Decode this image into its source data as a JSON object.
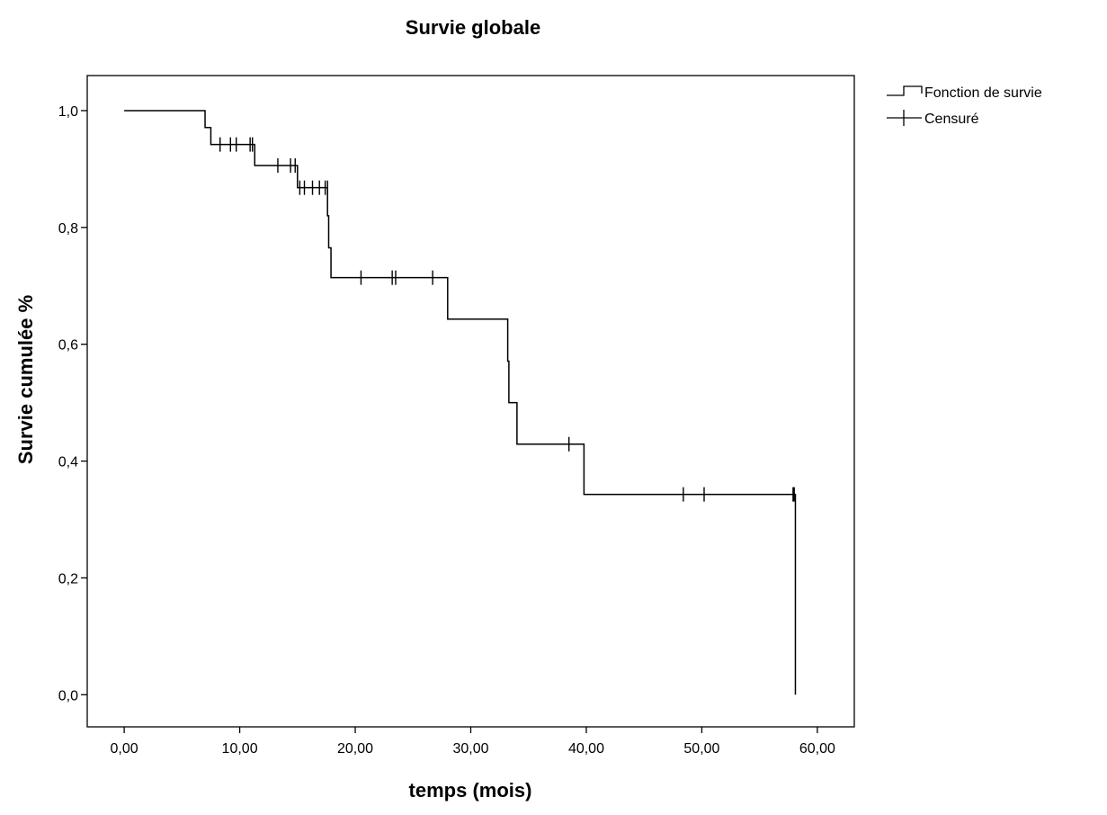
{
  "chart_data": {
    "type": "line",
    "title": "Survie globale",
    "xlabel": "temps (mois)",
    "ylabel": "Survie cumulée  %",
    "xlim": [
      -3.2,
      63.2
    ],
    "ylim": [
      -0.055,
      1.06
    ],
    "x_ticks": [
      0,
      10,
      20,
      30,
      40,
      50,
      60
    ],
    "x_tick_labels": [
      "0,00",
      "10,00",
      "20,00",
      "30,00",
      "40,00",
      "50,00",
      "60,00"
    ],
    "y_ticks": [
      0,
      0.2,
      0.4,
      0.6,
      0.8,
      1.0
    ],
    "y_tick_labels": [
      "0,0",
      "0,2",
      "0,4",
      "0,6",
      "0,8",
      "1,0"
    ],
    "grid": false,
    "legend": {
      "position": "top-right",
      "entries": [
        {
          "label": "Fonction de survie",
          "marker": "step"
        },
        {
          "label": "Censuré",
          "marker": "plus"
        }
      ]
    },
    "series": [
      {
        "name": "Fonction de survie",
        "steps": [
          {
            "x": 0,
            "y": 1.0
          },
          {
            "x": 7.0,
            "y": 0.971
          },
          {
            "x": 7.5,
            "y": 0.942
          },
          {
            "x": 11.3,
            "y": 0.906
          },
          {
            "x": 15.0,
            "y": 0.868
          },
          {
            "x": 17.6,
            "y": 0.82
          },
          {
            "x": 17.7,
            "y": 0.765
          },
          {
            "x": 17.9,
            "y": 0.714
          },
          {
            "x": 28.0,
            "y": 0.643
          },
          {
            "x": 33.2,
            "y": 0.571
          },
          {
            "x": 33.3,
            "y": 0.5
          },
          {
            "x": 34.0,
            "y": 0.429
          },
          {
            "x": 39.8,
            "y": 0.343
          },
          {
            "x": 58.1,
            "y": 0.0
          }
        ]
      },
      {
        "name": "Censuré",
        "points": [
          {
            "x": 8.3,
            "y": 0.942
          },
          {
            "x": 9.2,
            "y": 0.942
          },
          {
            "x": 9.7,
            "y": 0.942
          },
          {
            "x": 10.9,
            "y": 0.942
          },
          {
            "x": 11.1,
            "y": 0.942
          },
          {
            "x": 13.3,
            "y": 0.906
          },
          {
            "x": 14.4,
            "y": 0.906
          },
          {
            "x": 14.8,
            "y": 0.906
          },
          {
            "x": 15.2,
            "y": 0.868
          },
          {
            "x": 15.6,
            "y": 0.868
          },
          {
            "x": 16.3,
            "y": 0.868
          },
          {
            "x": 16.9,
            "y": 0.868
          },
          {
            "x": 17.4,
            "y": 0.868
          },
          {
            "x": 17.6,
            "y": 0.868
          },
          {
            "x": 20.5,
            "y": 0.714
          },
          {
            "x": 23.2,
            "y": 0.714
          },
          {
            "x": 23.5,
            "y": 0.714
          },
          {
            "x": 26.7,
            "y": 0.714
          },
          {
            "x": 38.5,
            "y": 0.429
          },
          {
            "x": 48.4,
            "y": 0.343
          },
          {
            "x": 50.2,
            "y": 0.343
          },
          {
            "x": 57.9,
            "y": 0.343
          },
          {
            "x": 58.0,
            "y": 0.343
          }
        ]
      }
    ]
  }
}
